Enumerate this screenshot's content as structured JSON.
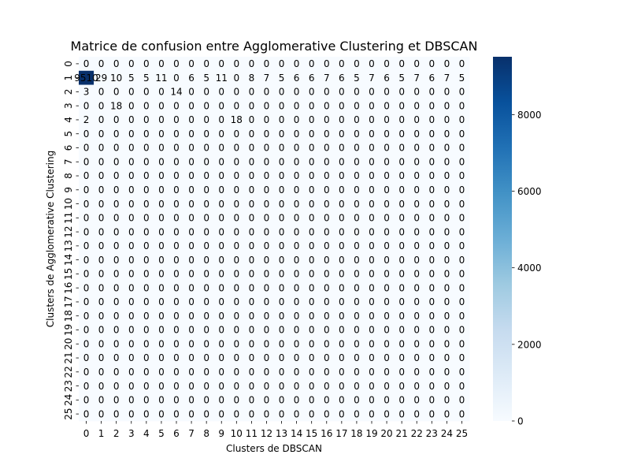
{
  "chart_data": {
    "type": "heatmap",
    "title": "Matrice de confusion entre Agglomerative Clustering et DBSCAN",
    "xlabel": "Clusters de DBSCAN",
    "ylabel": "Clusters de Agglomerative Clustering",
    "x_categories": [
      "0",
      "1",
      "2",
      "3",
      "4",
      "5",
      "6",
      "7",
      "8",
      "9",
      "10",
      "11",
      "12",
      "13",
      "14",
      "15",
      "16",
      "17",
      "18",
      "19",
      "20",
      "21",
      "22",
      "23",
      "24",
      "25"
    ],
    "y_categories": [
      "0",
      "1",
      "2",
      "3",
      "4",
      "5",
      "6",
      "7",
      "8",
      "9",
      "10",
      "11",
      "12",
      "13",
      "14",
      "15",
      "16",
      "17",
      "18",
      "19",
      "20",
      "21",
      "22",
      "23",
      "24",
      "25"
    ],
    "matrix": [
      [
        0,
        0,
        0,
        0,
        0,
        0,
        0,
        0,
        0,
        0,
        0,
        0,
        0,
        0,
        0,
        0,
        0,
        0,
        0,
        0,
        0,
        0,
        0,
        0,
        0,
        0
      ],
      [
        9510,
        29,
        10,
        5,
        5,
        11,
        0,
        6,
        5,
        11,
        0,
        8,
        7,
        5,
        6,
        6,
        7,
        6,
        5,
        7,
        6,
        5,
        7,
        6,
        7,
        5
      ],
      [
        3,
        0,
        0,
        0,
        0,
        0,
        14,
        0,
        0,
        0,
        0,
        0,
        0,
        0,
        0,
        0,
        0,
        0,
        0,
        0,
        0,
        0,
        0,
        0,
        0,
        0
      ],
      [
        0,
        0,
        18,
        0,
        0,
        0,
        0,
        0,
        0,
        0,
        0,
        0,
        0,
        0,
        0,
        0,
        0,
        0,
        0,
        0,
        0,
        0,
        0,
        0,
        0,
        0
      ],
      [
        2,
        0,
        0,
        0,
        0,
        0,
        0,
        0,
        0,
        0,
        18,
        0,
        0,
        0,
        0,
        0,
        0,
        0,
        0,
        0,
        0,
        0,
        0,
        0,
        0,
        0
      ],
      [
        0,
        0,
        0,
        0,
        0,
        0,
        0,
        0,
        0,
        0,
        0,
        0,
        0,
        0,
        0,
        0,
        0,
        0,
        0,
        0,
        0,
        0,
        0,
        0,
        0,
        0
      ],
      [
        0,
        0,
        0,
        0,
        0,
        0,
        0,
        0,
        0,
        0,
        0,
        0,
        0,
        0,
        0,
        0,
        0,
        0,
        0,
        0,
        0,
        0,
        0,
        0,
        0,
        0
      ],
      [
        0,
        0,
        0,
        0,
        0,
        0,
        0,
        0,
        0,
        0,
        0,
        0,
        0,
        0,
        0,
        0,
        0,
        0,
        0,
        0,
        0,
        0,
        0,
        0,
        0,
        0
      ],
      [
        0,
        0,
        0,
        0,
        0,
        0,
        0,
        0,
        0,
        0,
        0,
        0,
        0,
        0,
        0,
        0,
        0,
        0,
        0,
        0,
        0,
        0,
        0,
        0,
        0,
        0
      ],
      [
        0,
        0,
        0,
        0,
        0,
        0,
        0,
        0,
        0,
        0,
        0,
        0,
        0,
        0,
        0,
        0,
        0,
        0,
        0,
        0,
        0,
        0,
        0,
        0,
        0,
        0
      ],
      [
        0,
        0,
        0,
        0,
        0,
        0,
        0,
        0,
        0,
        0,
        0,
        0,
        0,
        0,
        0,
        0,
        0,
        0,
        0,
        0,
        0,
        0,
        0,
        0,
        0,
        0
      ],
      [
        0,
        0,
        0,
        0,
        0,
        0,
        0,
        0,
        0,
        0,
        0,
        0,
        0,
        0,
        0,
        0,
        0,
        0,
        0,
        0,
        0,
        0,
        0,
        0,
        0,
        0
      ],
      [
        0,
        0,
        0,
        0,
        0,
        0,
        0,
        0,
        0,
        0,
        0,
        0,
        0,
        0,
        0,
        0,
        0,
        0,
        0,
        0,
        0,
        0,
        0,
        0,
        0,
        0
      ],
      [
        0,
        0,
        0,
        0,
        0,
        0,
        0,
        0,
        0,
        0,
        0,
        0,
        0,
        0,
        0,
        0,
        0,
        0,
        0,
        0,
        0,
        0,
        0,
        0,
        0,
        0
      ],
      [
        0,
        0,
        0,
        0,
        0,
        0,
        0,
        0,
        0,
        0,
        0,
        0,
        0,
        0,
        0,
        0,
        0,
        0,
        0,
        0,
        0,
        0,
        0,
        0,
        0,
        0
      ],
      [
        0,
        0,
        0,
        0,
        0,
        0,
        0,
        0,
        0,
        0,
        0,
        0,
        0,
        0,
        0,
        0,
        0,
        0,
        0,
        0,
        0,
        0,
        0,
        0,
        0,
        0
      ],
      [
        0,
        0,
        0,
        0,
        0,
        0,
        0,
        0,
        0,
        0,
        0,
        0,
        0,
        0,
        0,
        0,
        0,
        0,
        0,
        0,
        0,
        0,
        0,
        0,
        0,
        0
      ],
      [
        0,
        0,
        0,
        0,
        0,
        0,
        0,
        0,
        0,
        0,
        0,
        0,
        0,
        0,
        0,
        0,
        0,
        0,
        0,
        0,
        0,
        0,
        0,
        0,
        0,
        0
      ],
      [
        0,
        0,
        0,
        0,
        0,
        0,
        0,
        0,
        0,
        0,
        0,
        0,
        0,
        0,
        0,
        0,
        0,
        0,
        0,
        0,
        0,
        0,
        0,
        0,
        0,
        0
      ],
      [
        0,
        0,
        0,
        0,
        0,
        0,
        0,
        0,
        0,
        0,
        0,
        0,
        0,
        0,
        0,
        0,
        0,
        0,
        0,
        0,
        0,
        0,
        0,
        0,
        0,
        0
      ],
      [
        0,
        0,
        0,
        0,
        0,
        0,
        0,
        0,
        0,
        0,
        0,
        0,
        0,
        0,
        0,
        0,
        0,
        0,
        0,
        0,
        0,
        0,
        0,
        0,
        0,
        0
      ],
      [
        0,
        0,
        0,
        0,
        0,
        0,
        0,
        0,
        0,
        0,
        0,
        0,
        0,
        0,
        0,
        0,
        0,
        0,
        0,
        0,
        0,
        0,
        0,
        0,
        0,
        0
      ],
      [
        0,
        0,
        0,
        0,
        0,
        0,
        0,
        0,
        0,
        0,
        0,
        0,
        0,
        0,
        0,
        0,
        0,
        0,
        0,
        0,
        0,
        0,
        0,
        0,
        0,
        0
      ],
      [
        0,
        0,
        0,
        0,
        0,
        0,
        0,
        0,
        0,
        0,
        0,
        0,
        0,
        0,
        0,
        0,
        0,
        0,
        0,
        0,
        0,
        0,
        0,
        0,
        0,
        0
      ],
      [
        0,
        0,
        0,
        0,
        0,
        0,
        0,
        0,
        0,
        0,
        0,
        0,
        0,
        0,
        0,
        0,
        0,
        0,
        0,
        0,
        0,
        0,
        0,
        0,
        0,
        0
      ],
      [
        0,
        0,
        0,
        0,
        0,
        0,
        0,
        0,
        0,
        0,
        0,
        0,
        0,
        0,
        0,
        0,
        0,
        0,
        0,
        0,
        0,
        0,
        0,
        0,
        0,
        0
      ]
    ],
    "colormap": "Blues",
    "color_range": [
      0,
      9510
    ],
    "colorbar_ticks": [
      0,
      2000,
      4000,
      6000,
      8000
    ],
    "annotated": true,
    "grid": false
  },
  "colors": {
    "low": "#f7fbff",
    "high": "#08306b",
    "dark_text": "#000000",
    "light_text": "#ffffff"
  }
}
